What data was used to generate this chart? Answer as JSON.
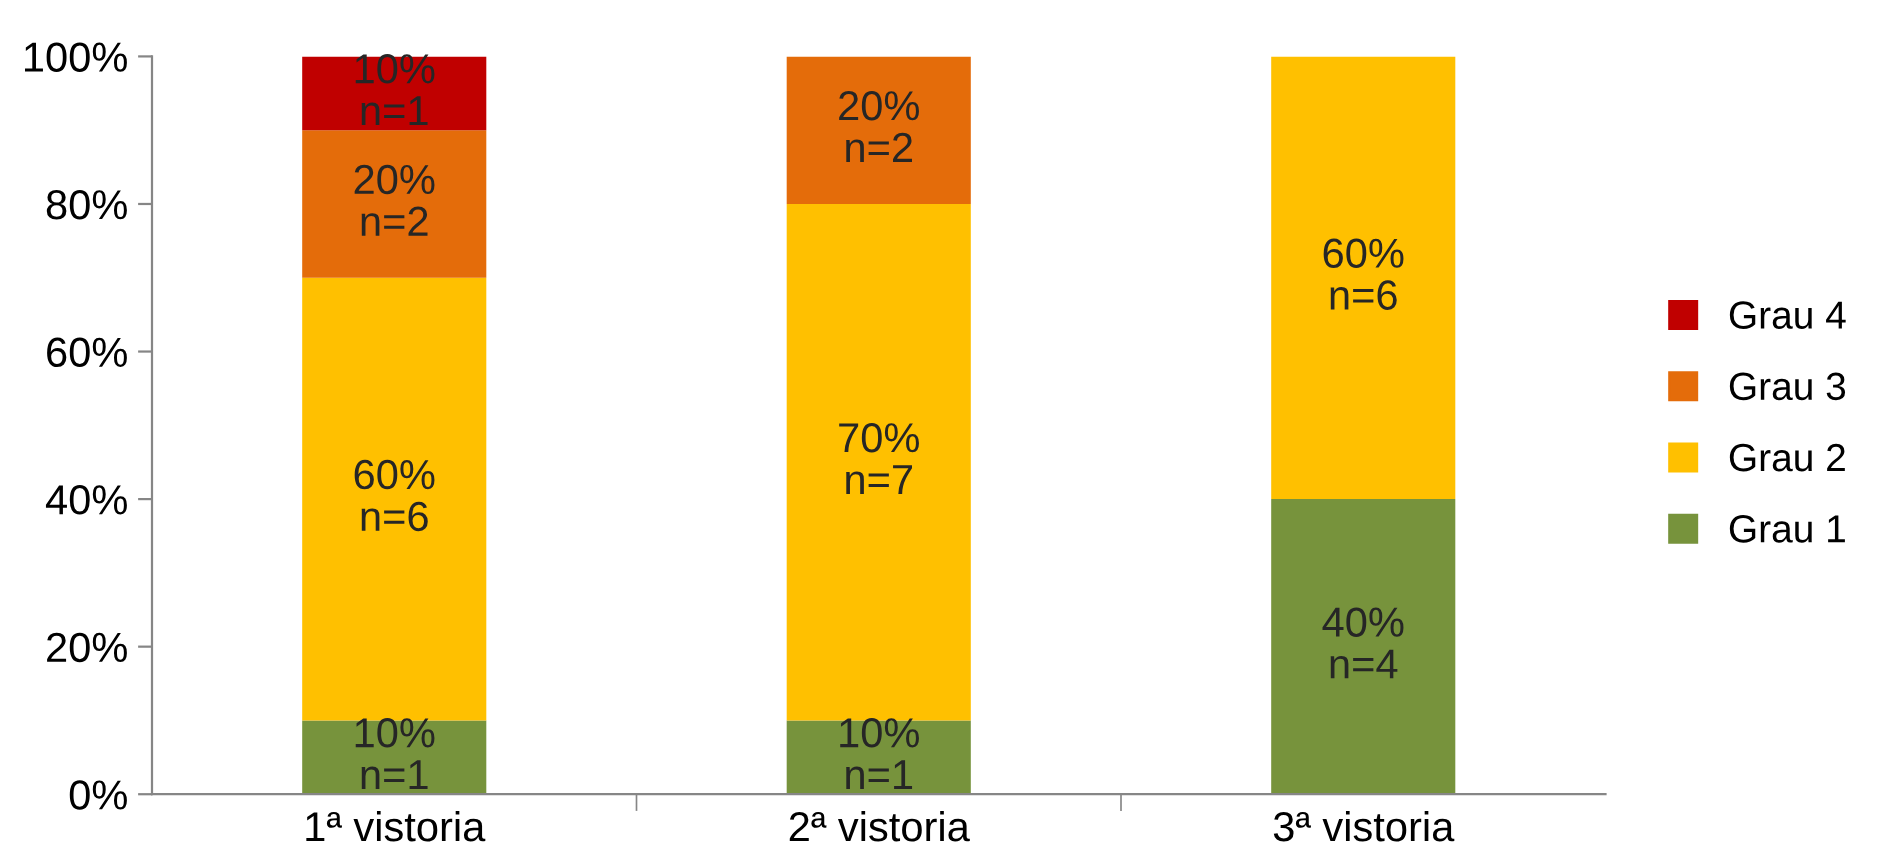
{
  "chart_data": {
    "type": "bar",
    "stacked": true,
    "categories": [
      "1ª vistoria",
      "2ª vistoria",
      "3ª vistoria"
    ],
    "series": [
      {
        "name": "Grau 1",
        "color": "#77933c",
        "values": [
          10,
          10,
          40
        ],
        "value_labels": [
          "10%\nn=1",
          "10%\nn=1",
          "40%\nn=4"
        ]
      },
      {
        "name": "Grau 2",
        "color": "#ffc000",
        "values": [
          60,
          70,
          60
        ],
        "value_labels": [
          "60%\nn=6",
          "70%\nn=7",
          "60%\nn=6"
        ]
      },
      {
        "name": "Grau 3",
        "color": "#e46c0a",
        "values": [
          20,
          20,
          0
        ],
        "value_labels": [
          "20%\nn=2",
          "20%\nn=2",
          null
        ]
      },
      {
        "name": "Grau 4",
        "color": "#c00000",
        "values": [
          10,
          0,
          0
        ],
        "value_labels": [
          "10%\nn=1",
          null,
          null
        ]
      }
    ],
    "ylim": [
      0,
      100
    ],
    "yticks": [
      {
        "value": 0,
        "label": "0%"
      },
      {
        "value": 20,
        "label": "20%"
      },
      {
        "value": 40,
        "label": "40%"
      },
      {
        "value": 60,
        "label": "60%"
      },
      {
        "value": 80,
        "label": "80%"
      },
      {
        "value": 100,
        "label": "100%"
      }
    ],
    "grid": false,
    "legend": "right"
  }
}
